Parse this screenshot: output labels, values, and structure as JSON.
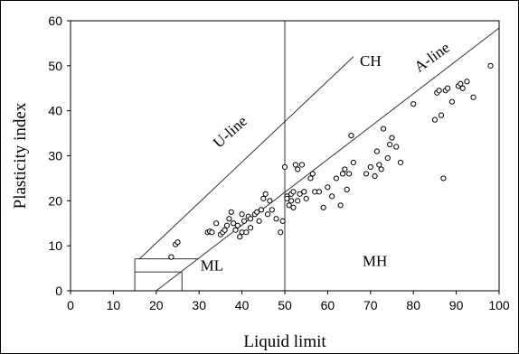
{
  "chart_data": {
    "type": "scatter",
    "xlabel": "Liquid limit",
    "ylabel": "Plasticity index",
    "xlim": [
      0,
      100
    ],
    "ylim": [
      0,
      60
    ],
    "xticks": [
      0,
      10,
      20,
      30,
      40,
      50,
      60,
      70,
      80,
      90,
      100
    ],
    "yticks": [
      0,
      10,
      20,
      30,
      40,
      50,
      60
    ],
    "grid": false,
    "marker": "open-circle",
    "line_color": "#333333",
    "reference_lines": [
      {
        "label": "U-line",
        "points": [
          [
            16,
            7
          ],
          [
            66,
            52
          ]
        ]
      },
      {
        "label": "A-line",
        "points": [
          [
            20,
            0
          ],
          [
            100,
            58.4
          ]
        ]
      },
      {
        "label": "",
        "points": [
          [
            50,
            0
          ],
          [
            50,
            60
          ]
        ]
      }
    ],
    "annotations": [
      {
        "text": "U-line",
        "x": 38,
        "y": 34.5,
        "rotate": -42
      },
      {
        "text": "A-line",
        "x": 85,
        "y": 51,
        "rotate": -36
      },
      {
        "text": "CH",
        "x": 70,
        "y": 50
      },
      {
        "text": "ML",
        "x": 33,
        "y": 4.5
      },
      {
        "text": "MH",
        "x": 71,
        "y": 5.5
      }
    ],
    "points": [
      [
        23.5,
        7.5
      ],
      [
        24.5,
        10.3
      ],
      [
        25,
        10.8
      ],
      [
        32,
        13
      ],
      [
        32.5,
        13.2
      ],
      [
        33,
        13
      ],
      [
        34,
        15
      ],
      [
        35,
        12.5
      ],
      [
        35.5,
        13
      ],
      [
        36,
        13.5
      ],
      [
        36.5,
        14.5
      ],
      [
        37,
        16
      ],
      [
        37.5,
        17.5
      ],
      [
        38,
        15
      ],
      [
        38.5,
        13.5
      ],
      [
        39,
        14.5
      ],
      [
        39.5,
        12
      ],
      [
        40,
        13
      ],
      [
        40,
        17
      ],
      [
        40.5,
        15.5
      ],
      [
        41,
        13
      ],
      [
        41.5,
        16.5
      ],
      [
        42,
        14
      ],
      [
        42,
        16
      ],
      [
        43,
        17
      ],
      [
        43.5,
        17.5
      ],
      [
        44,
        15.5
      ],
      [
        44.5,
        18
      ],
      [
        45,
        20.5
      ],
      [
        45.5,
        21.5
      ],
      [
        46,
        17
      ],
      [
        46.5,
        20
      ],
      [
        47,
        18
      ],
      [
        48,
        16
      ],
      [
        49,
        13
      ],
      [
        49.5,
        15.5
      ],
      [
        50,
        27.5
      ],
      [
        50.5,
        21
      ],
      [
        50.5,
        20.5
      ],
      [
        51,
        19
      ],
      [
        51.5,
        20
      ],
      [
        51.5,
        21.5
      ],
      [
        52,
        22
      ],
      [
        52,
        18.5
      ],
      [
        52.5,
        28
      ],
      [
        53,
        27
      ],
      [
        53,
        20
      ],
      [
        53.5,
        21.5
      ],
      [
        54,
        28
      ],
      [
        54.5,
        22
      ],
      [
        55,
        20.5
      ],
      [
        56,
        25
      ],
      [
        56.5,
        26
      ],
      [
        57,
        22
      ],
      [
        58,
        22
      ],
      [
        59,
        18.5
      ],
      [
        60,
        23
      ],
      [
        61,
        21
      ],
      [
        62,
        25
      ],
      [
        63,
        19
      ],
      [
        63.5,
        26
      ],
      [
        64,
        27
      ],
      [
        64.5,
        22.5
      ],
      [
        65,
        26
      ],
      [
        65.5,
        34.5
      ],
      [
        66,
        28.5
      ],
      [
        69,
        26
      ],
      [
        70,
        27.5
      ],
      [
        71,
        25.5
      ],
      [
        71.5,
        31
      ],
      [
        72,
        28
      ],
      [
        72.5,
        27
      ],
      [
        73,
        36
      ],
      [
        74,
        29.5
      ],
      [
        74.5,
        32.5
      ],
      [
        75,
        34
      ],
      [
        76,
        32
      ],
      [
        77,
        28.5
      ],
      [
        80,
        41.5
      ],
      [
        85,
        38
      ],
      [
        85.5,
        44
      ],
      [
        86,
        44.5
      ],
      [
        86.5,
        39
      ],
      [
        87,
        25
      ],
      [
        87.5,
        44.5
      ],
      [
        88,
        45
      ],
      [
        89,
        42
      ],
      [
        90.5,
        45.5
      ],
      [
        91,
        46
      ],
      [
        91.5,
        45
      ],
      [
        92.5,
        46.5
      ],
      [
        94,
        43
      ],
      [
        98,
        50
      ]
    ]
  }
}
